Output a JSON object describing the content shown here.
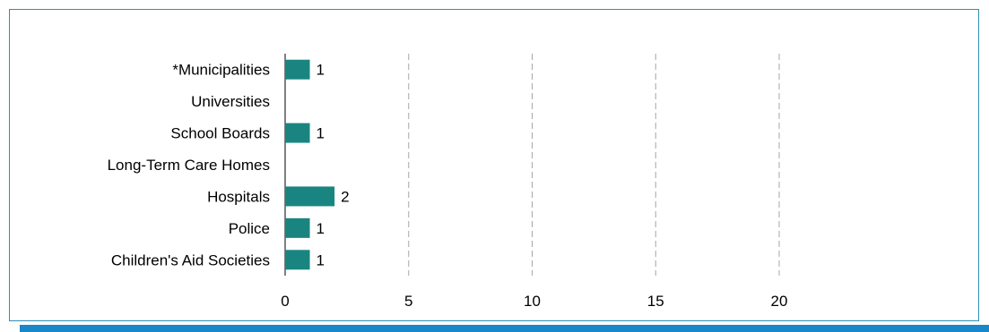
{
  "colors": {
    "bar": "#1a8580",
    "frame": "#2f8fb5",
    "accent_bar": "#1a87c9",
    "grid": "#a6a6a6"
  },
  "chart_data": {
    "type": "bar",
    "orientation": "horizontal",
    "categories": [
      "*Municipalities",
      "Universities",
      "School Boards",
      "Long-Term Care Homes",
      "Hospitals",
      "Police",
      "Children's Aid Societies"
    ],
    "values": [
      1,
      null,
      1,
      null,
      2,
      1,
      1
    ],
    "data_labels": [
      "1",
      "",
      "1",
      "",
      "2",
      "1",
      "1"
    ],
    "xlim": [
      0,
      20
    ],
    "xticks": [
      0,
      5,
      10,
      15,
      20
    ],
    "xtick_labels": [
      "0",
      "5",
      "10",
      "15",
      "20"
    ],
    "grid": "vertical-dashed",
    "legend": "none"
  }
}
